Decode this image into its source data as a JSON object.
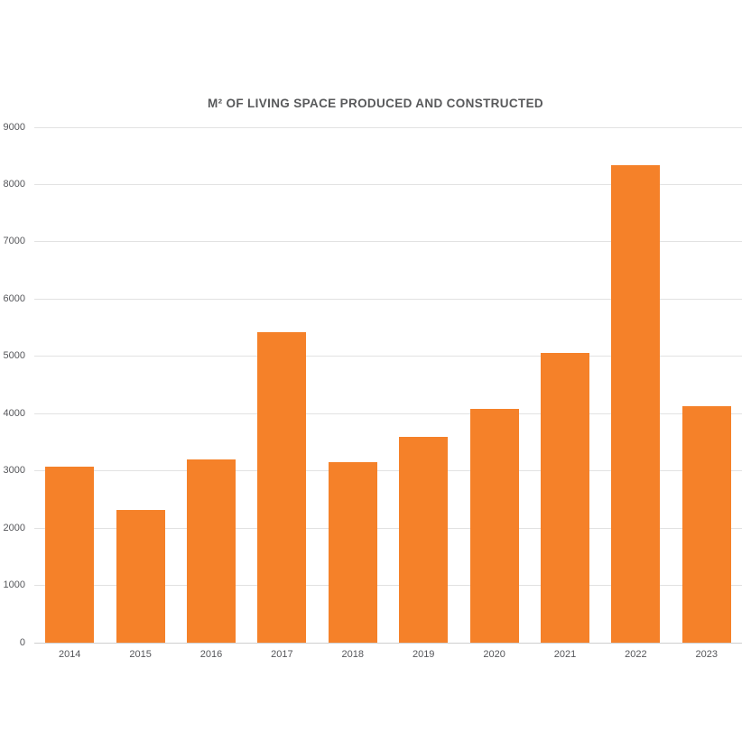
{
  "chart_data": {
    "type": "bar",
    "title": "M² OF LIVING SPACE PRODUCED AND CONSTRUCTED",
    "categories": [
      "2014",
      "2015",
      "2016",
      "2017",
      "2018",
      "2019",
      "2020",
      "2021",
      "2022",
      "2023"
    ],
    "values": [
      3070,
      2320,
      3200,
      5420,
      3150,
      3600,
      4090,
      5060,
      8340,
      4130
    ],
    "xlabel": "",
    "ylabel": "",
    "ylim": [
      0,
      9000
    ],
    "ytick_interval": 1000,
    "yticks": [
      0,
      1000,
      2000,
      3000,
      4000,
      5000,
      6000,
      7000,
      8000,
      9000
    ],
    "grid": true,
    "legend": false,
    "colors": {
      "bar": "#f58129",
      "gridline": "#e2e2e2",
      "baseline": "#cfcfcf",
      "tick_text": "#55565a",
      "title_text": "#58595b",
      "background": "#ffffff"
    }
  }
}
